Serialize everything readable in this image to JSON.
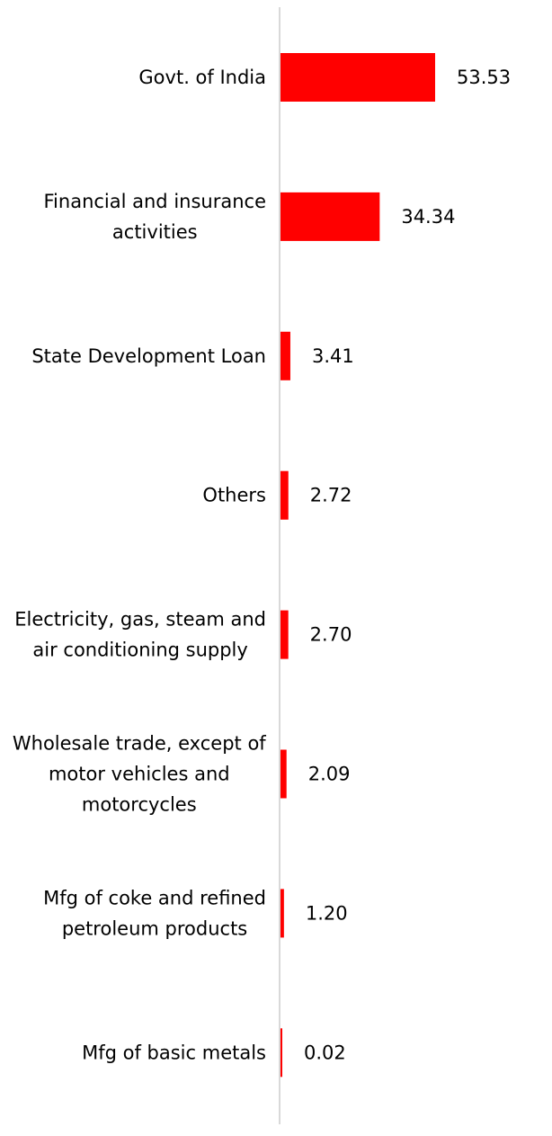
{
  "chart_data": {
    "type": "bar",
    "orientation": "horizontal",
    "categories": [
      [
        "Govt. of India"
      ],
      [
        "Financial and insurance",
        "activities"
      ],
      [
        "State Development Loan"
      ],
      [
        "Others"
      ],
      [
        "Electricity, gas, steam and",
        "air conditioning supply"
      ],
      [
        "Wholesale trade, except of",
        "motor vehicles and",
        "motorcycles"
      ],
      [
        "Mfg of coke and refined",
        "petroleum products"
      ],
      [
        "Mfg of basic metals"
      ]
    ],
    "values": [
      53.53,
      34.34,
      3.41,
      2.72,
      2.7,
      2.09,
      1.2,
      0.02
    ],
    "value_labels": [
      "53.53",
      "34.34",
      "3.41",
      "2.72",
      "2.70",
      "2.09",
      "1.20",
      "0.02"
    ],
    "bar_color": "#ff0000",
    "axis_color": "#d9d9d9",
    "title": "",
    "xlabel": "",
    "ylabel": "",
    "grid": false,
    "legend": "none"
  }
}
